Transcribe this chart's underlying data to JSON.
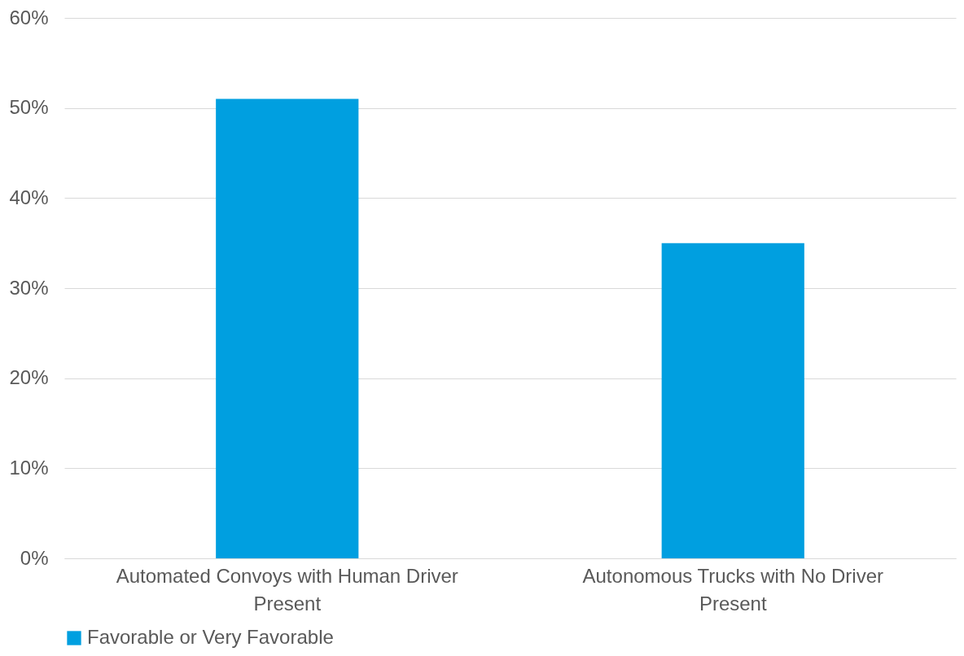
{
  "chart_data": {
    "type": "bar",
    "categories": [
      "Automated Convoys with Human Driver Present",
      "Autonomous Trucks with No Driver Present"
    ],
    "series": [
      {
        "name": "Favorable or Very Favorable",
        "color": "#009fe0",
        "values": [
          51,
          35
        ]
      }
    ],
    "ylim": [
      0,
      60
    ],
    "yticks": [
      {
        "value": 0,
        "label": "0%"
      },
      {
        "value": 10,
        "label": "10%"
      },
      {
        "value": 20,
        "label": "20%"
      },
      {
        "value": 30,
        "label": "30%"
      },
      {
        "value": 40,
        "label": "40%"
      },
      {
        "value": 50,
        "label": "50%"
      },
      {
        "value": 60,
        "label": "60%"
      }
    ],
    "grid": "y",
    "legend": "bottom"
  }
}
